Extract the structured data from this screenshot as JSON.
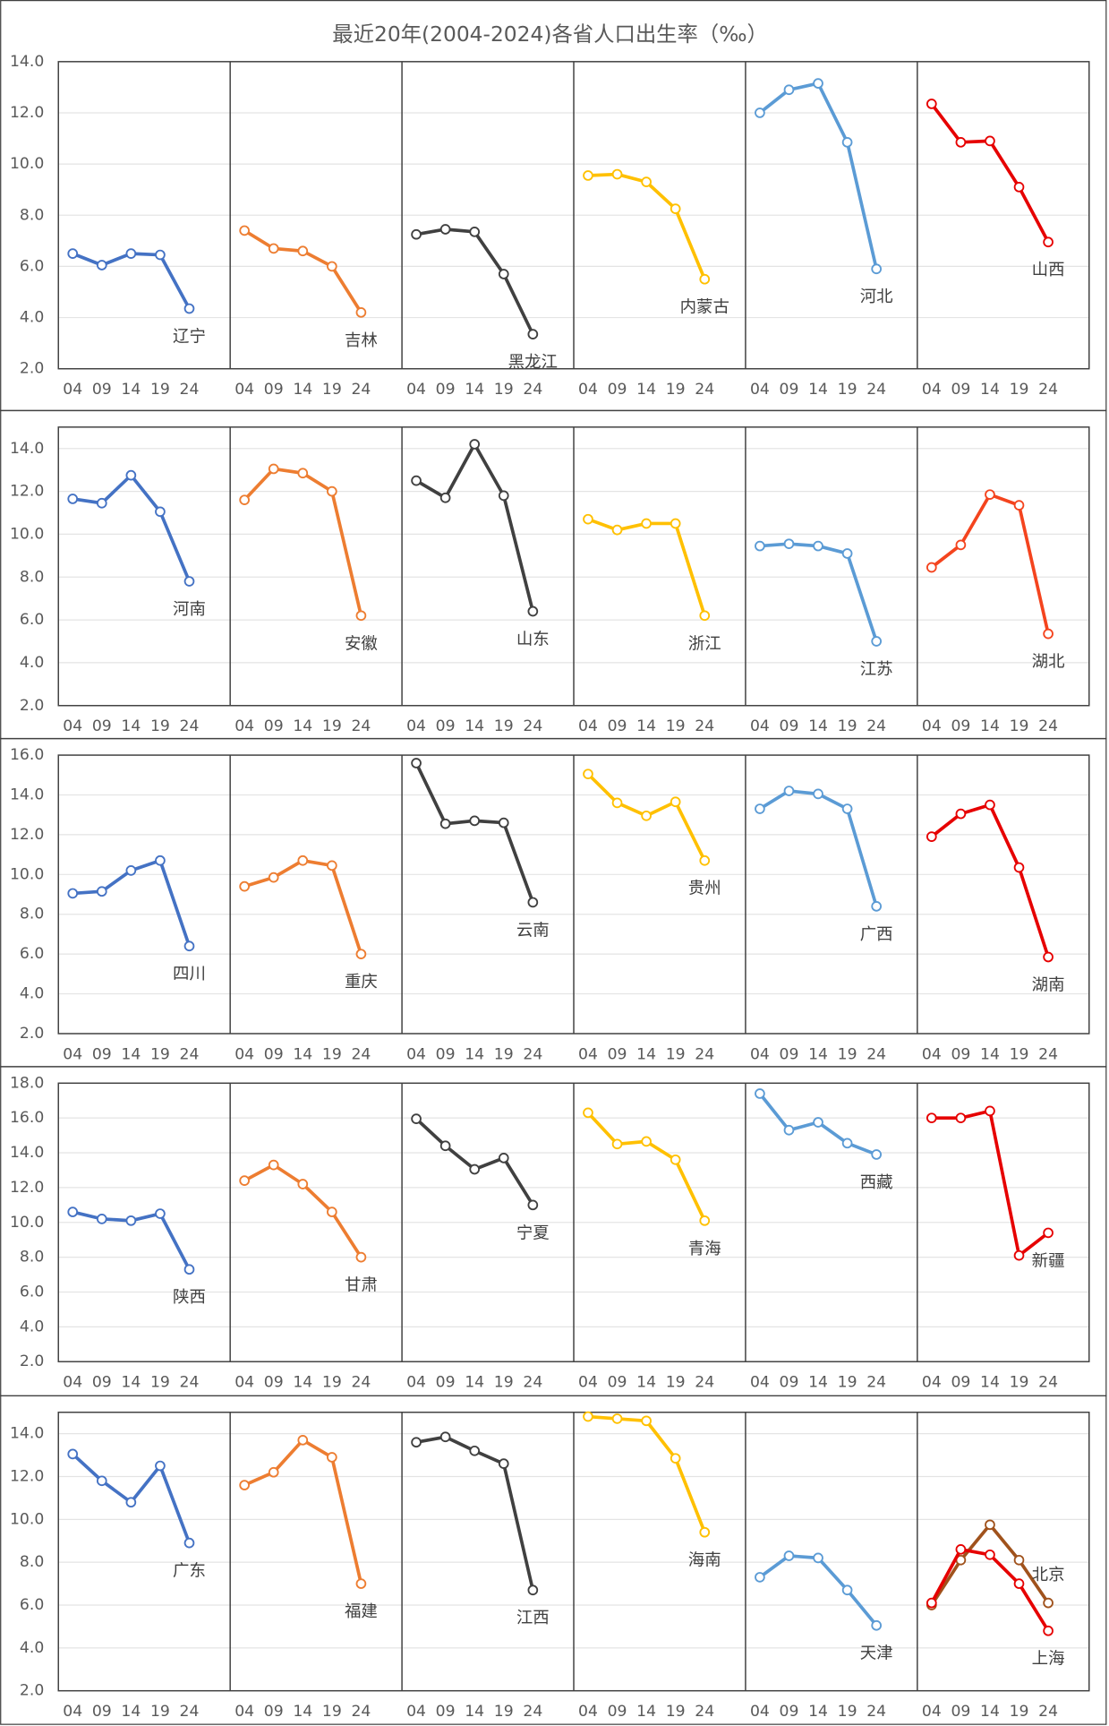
{
  "chart_data": [
    {
      "type": "line",
      "title": "最近20年(2004-2024)各省人口出生率（‰）",
      "categories": [
        "04",
        "09",
        "14",
        "19",
        "24"
      ],
      "ylim": [
        2,
        14
      ],
      "yticks": [
        {
          "value": 2,
          "label": "2.0"
        },
        {
          "value": 4,
          "label": "4.0"
        },
        {
          "value": 6,
          "label": "6.0"
        },
        {
          "value": 8,
          "label": "8.0"
        },
        {
          "value": 10,
          "label": "10.0"
        },
        {
          "value": 12,
          "label": "12.0"
        },
        {
          "value": 14,
          "label": "14.0"
        }
      ],
      "series": [
        {
          "name": "辽宁",
          "color": "#4472c4",
          "values": [
            6.5,
            6.05,
            6.5,
            6.45,
            4.35
          ]
        },
        {
          "name": "吉林",
          "color": "#ed7d31",
          "values": [
            7.4,
            6.7,
            6.6,
            6.0,
            4.2
          ]
        },
        {
          "name": "黑龙江",
          "color": "#404040",
          "values": [
            7.25,
            7.45,
            7.35,
            5.7,
            3.35
          ]
        },
        {
          "name": "内蒙古",
          "color": "#ffc000",
          "values": [
            9.55,
            9.6,
            9.3,
            8.25,
            5.5
          ]
        },
        {
          "name": "河北",
          "color": "#5b9bd5",
          "values": [
            12.0,
            12.9,
            13.15,
            10.85,
            5.9
          ]
        },
        {
          "name": "山西",
          "color": "#e60000",
          "values": [
            12.35,
            10.85,
            10.9,
            9.1,
            6.95
          ]
        }
      ]
    },
    {
      "type": "line",
      "categories": [
        "04",
        "09",
        "14",
        "19",
        "24"
      ],
      "ylim": [
        2,
        15
      ],
      "yticks": [
        {
          "value": 2,
          "label": "2.0"
        },
        {
          "value": 4,
          "label": "4.0"
        },
        {
          "value": 6,
          "label": "6.0"
        },
        {
          "value": 8,
          "label": "8.0"
        },
        {
          "value": 10,
          "label": "10.0"
        },
        {
          "value": 12,
          "label": "12.0"
        },
        {
          "value": 14,
          "label": "14.0"
        }
      ],
      "series": [
        {
          "name": "河南",
          "color": "#4472c4",
          "values": [
            11.65,
            11.45,
            12.75,
            11.05,
            7.8
          ]
        },
        {
          "name": "安徽",
          "color": "#ed7d31",
          "values": [
            11.6,
            13.05,
            12.85,
            12.0,
            6.2
          ]
        },
        {
          "name": "山东",
          "color": "#404040",
          "values": [
            12.5,
            11.7,
            14.2,
            11.8,
            6.4
          ]
        },
        {
          "name": "浙江",
          "color": "#ffc000",
          "values": [
            10.7,
            10.2,
            10.5,
            10.5,
            6.2
          ]
        },
        {
          "name": "江苏",
          "color": "#5b9bd5",
          "values": [
            9.45,
            9.55,
            9.45,
            9.1,
            5.0
          ]
        },
        {
          "name": "湖北",
          "color": "#f4441e",
          "values": [
            8.45,
            9.5,
            11.85,
            11.35,
            5.35
          ]
        }
      ]
    },
    {
      "type": "line",
      "categories": [
        "04",
        "09",
        "14",
        "19",
        "24"
      ],
      "ylim": [
        2,
        16
      ],
      "yticks": [
        {
          "value": 2,
          "label": "2.0"
        },
        {
          "value": 4,
          "label": "4.0"
        },
        {
          "value": 6,
          "label": "6.0"
        },
        {
          "value": 8,
          "label": "8.0"
        },
        {
          "value": 10,
          "label": "10.0"
        },
        {
          "value": 12,
          "label": "12.0"
        },
        {
          "value": 14,
          "label": "14.0"
        },
        {
          "value": 16,
          "label": "16.0"
        }
      ],
      "series": [
        {
          "name": "四川",
          "color": "#4472c4",
          "values": [
            9.05,
            9.15,
            10.2,
            10.7,
            6.4
          ]
        },
        {
          "name": "重庆",
          "color": "#ed7d31",
          "values": [
            9.4,
            9.85,
            10.7,
            10.45,
            6.0
          ]
        },
        {
          "name": "云南",
          "color": "#404040",
          "values": [
            15.6,
            12.55,
            12.7,
            12.6,
            8.6
          ]
        },
        {
          "name": "贵州",
          "color": "#ffc000",
          "values": [
            15.05,
            13.6,
            12.95,
            13.65,
            10.7
          ]
        },
        {
          "name": "广西",
          "color": "#5b9bd5",
          "values": [
            13.3,
            14.2,
            14.05,
            13.3,
            8.4
          ]
        },
        {
          "name": "湖南",
          "color": "#e60000",
          "values": [
            11.9,
            13.05,
            13.5,
            10.35,
            5.85
          ]
        }
      ]
    },
    {
      "type": "line",
      "categories": [
        "04",
        "09",
        "14",
        "19",
        "24"
      ],
      "ylim": [
        2,
        18
      ],
      "yticks": [
        {
          "value": 2,
          "label": "2.0"
        },
        {
          "value": 4,
          "label": "4.0"
        },
        {
          "value": 6,
          "label": "6.0"
        },
        {
          "value": 8,
          "label": "8.0"
        },
        {
          "value": 10,
          "label": "10.0"
        },
        {
          "value": 12,
          "label": "12.0"
        },
        {
          "value": 14,
          "label": "14.0"
        },
        {
          "value": 16,
          "label": "16.0"
        },
        {
          "value": 18,
          "label": "18.0"
        }
      ],
      "series": [
        {
          "name": "陕西",
          "color": "#4472c4",
          "values": [
            10.6,
            10.2,
            10.1,
            10.5,
            7.3
          ]
        },
        {
          "name": "甘肃",
          "color": "#ed7d31",
          "values": [
            12.4,
            13.3,
            12.2,
            10.6,
            8.0
          ]
        },
        {
          "name": "宁夏",
          "color": "#404040",
          "values": [
            15.95,
            14.4,
            13.05,
            13.7,
            11.0
          ]
        },
        {
          "name": "青海",
          "color": "#ffc000",
          "values": [
            16.3,
            14.5,
            14.65,
            13.6,
            10.1
          ]
        },
        {
          "name": "西藏",
          "color": "#5b9bd5",
          "values": [
            17.4,
            15.3,
            15.75,
            14.55,
            13.9
          ]
        },
        {
          "name": "新疆",
          "color": "#e60000",
          "values": [
            16.0,
            16.0,
            16.4,
            8.1,
            9.4
          ]
        }
      ]
    },
    {
      "type": "line",
      "categories": [
        "04",
        "09",
        "14",
        "19",
        "24"
      ],
      "ylim": [
        2,
        15
      ],
      "yticks": [
        {
          "value": 2,
          "label": "2.0"
        },
        {
          "value": 4,
          "label": "4.0"
        },
        {
          "value": 6,
          "label": "6.0"
        },
        {
          "value": 8,
          "label": "8.0"
        },
        {
          "value": 10,
          "label": "10.0"
        },
        {
          "value": 12,
          "label": "12.0"
        },
        {
          "value": 14,
          "label": "14.0"
        }
      ],
      "series": [
        {
          "name": "广东",
          "color": "#4472c4",
          "values": [
            13.05,
            11.8,
            10.8,
            12.5,
            8.9
          ]
        },
        {
          "name": "福建",
          "color": "#ed7d31",
          "values": [
            11.6,
            12.2,
            13.7,
            12.9,
            7.0
          ]
        },
        {
          "name": "江西",
          "color": "#404040",
          "values": [
            13.6,
            13.85,
            13.2,
            12.6,
            6.7
          ]
        },
        {
          "name": "海南",
          "color": "#ffc000",
          "values": [
            14.8,
            14.7,
            14.6,
            12.85,
            9.4
          ]
        },
        {
          "name": "天津",
          "color": "#5b9bd5",
          "values": [
            7.3,
            8.3,
            8.2,
            6.7,
            5.05
          ]
        },
        {
          "name": "北京",
          "color": "#a0521c",
          "values": [
            6.0,
            8.1,
            9.75,
            8.1,
            6.1
          ]
        },
        {
          "name": "上海",
          "color": "#e60000",
          "values": [
            6.1,
            8.6,
            8.35,
            7.0,
            4.8
          ]
        }
      ]
    }
  ]
}
